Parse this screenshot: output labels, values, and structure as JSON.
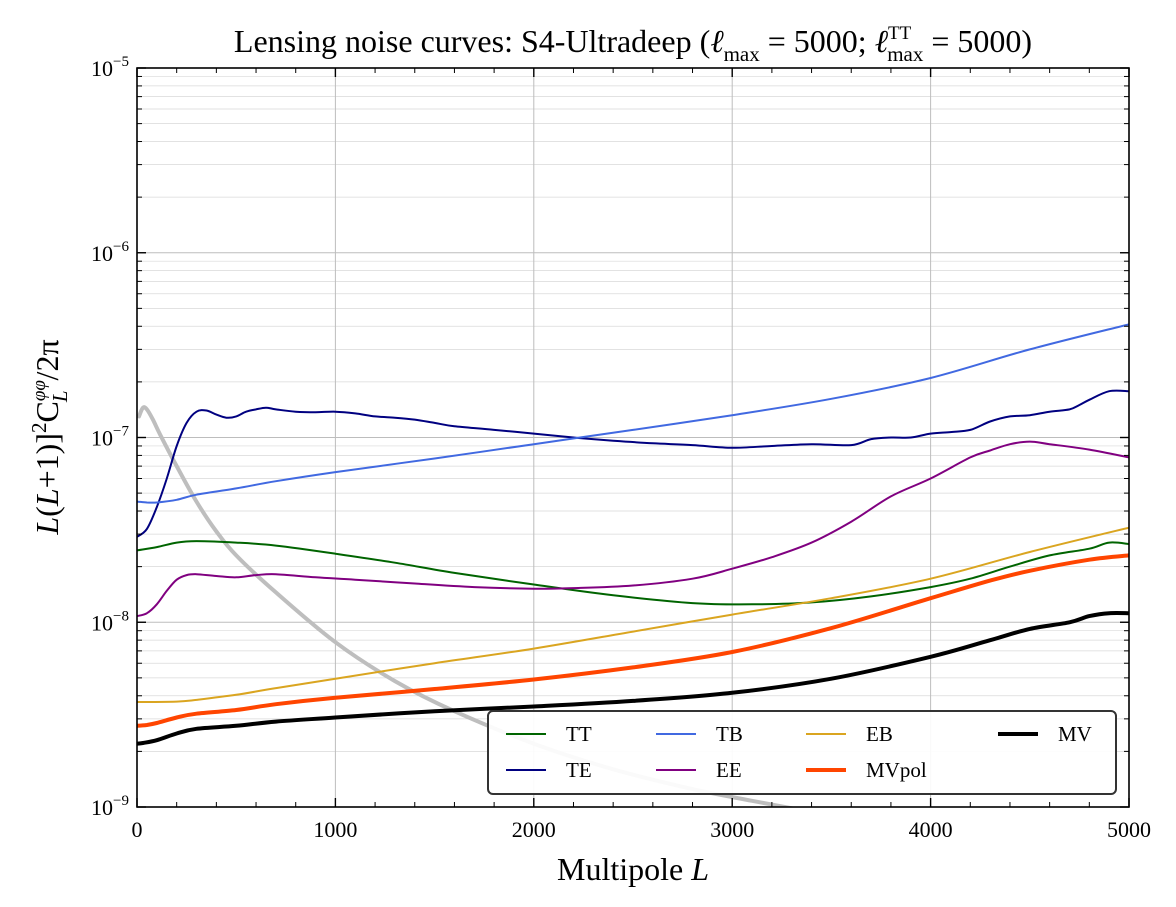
{
  "chart_data": {
    "type": "line",
    "title": "Lensing noise curves: S4-Ultradeep (ℓmax = 5000; ℓTTmax = 5000)",
    "title_parts": {
      "prefix": "Lensing noise curves: S4-Ultradeep (",
      "ell": "ℓ",
      "max": "max",
      "eq1": " = 5000; ",
      "tt": "TT",
      "eq2": " = 5000)"
    },
    "xlabel": "Multipole L",
    "xlabel_parts": {
      "text": "Multipole ",
      "var": "L"
    },
    "ylabel": "L(L+1)]²C_L^φφ/2π",
    "ylabel_parts": {
      "a": "L",
      "b": "(",
      "c": "L",
      "d": "+1)]",
      "e": "2",
      "f": "C",
      "g": "φφ",
      "h": "L",
      "i": "/2π"
    },
    "xlim": [
      0,
      5000
    ],
    "ylim": [
      1e-09,
      1e-05
    ],
    "yscale": "log",
    "grid": true,
    "legend_position": "lower-right",
    "x_ticks": [
      {
        "value": 0,
        "label": "0"
      },
      {
        "value": 1000,
        "label": "1000"
      },
      {
        "value": 2000,
        "label": "2000"
      },
      {
        "value": 3000,
        "label": "3000"
      },
      {
        "value": 4000,
        "label": "4000"
      },
      {
        "value": 5000,
        "label": "5000"
      }
    ],
    "y_ticks": [
      {
        "value": 1e-09,
        "base": "10",
        "exp": "−9"
      },
      {
        "value": 1e-08,
        "base": "10",
        "exp": "−8"
      },
      {
        "value": 1e-07,
        "base": "10",
        "exp": "−7"
      },
      {
        "value": 1e-06,
        "base": "10",
        "exp": "−6"
      },
      {
        "value": 1e-05,
        "base": "10",
        "exp": "−5"
      }
    ],
    "series": [
      {
        "name": "TT",
        "color": "#006400",
        "width": 2,
        "x": [
          0,
          100,
          200,
          300,
          500,
          700,
          1000,
          1300,
          1600,
          2000,
          2400,
          2800,
          3100,
          3400,
          3700,
          4000,
          4200,
          4400,
          4600,
          4800,
          4900,
          5000
        ],
        "y": [
          2.45e-08,
          2.55e-08,
          2.7e-08,
          2.75e-08,
          2.7e-08,
          2.6e-08,
          2.35e-08,
          2.1e-08,
          1.85e-08,
          1.6e-08,
          1.4e-08,
          1.27e-08,
          1.25e-08,
          1.28e-08,
          1.38e-08,
          1.55e-08,
          1.72e-08,
          2e-08,
          2.3e-08,
          2.5e-08,
          2.7e-08,
          2.65e-08
        ]
      },
      {
        "name": "TE",
        "color": "#000080",
        "width": 2,
        "x": [
          0,
          50,
          100,
          150,
          200,
          250,
          300,
          350,
          400,
          450,
          500,
          550,
          600,
          650,
          700,
          800,
          900,
          1000,
          1100,
          1200,
          1300,
          1400,
          1500,
          1600,
          1800,
          2000,
          2200,
          2400,
          2600,
          2800,
          3000,
          3200,
          3400,
          3600,
          3700,
          3800,
          3900,
          4000,
          4100,
          4200,
          4300,
          4400,
          4500,
          4600,
          4700,
          4750,
          4800,
          4900,
          5000
        ],
        "y": [
          2.9e-08,
          3.2e-08,
          4.2e-08,
          6e-08,
          9e-08,
          1.2e-07,
          1.38e-07,
          1.4e-07,
          1.33e-07,
          1.28e-07,
          1.3e-07,
          1.38e-07,
          1.42e-07,
          1.45e-07,
          1.42e-07,
          1.38e-07,
          1.37e-07,
          1.38e-07,
          1.35e-07,
          1.3e-07,
          1.28e-07,
          1.25e-07,
          1.2e-07,
          1.15e-07,
          1.1e-07,
          1.05e-07,
          1e-07,
          9.6e-08,
          9.3e-08,
          9.1e-08,
          8.8e-08,
          9e-08,
          9.2e-08,
          9.1e-08,
          9.8e-08,
          1e-07,
          1e-07,
          1.05e-07,
          1.07e-07,
          1.1e-07,
          1.22e-07,
          1.3e-07,
          1.32e-07,
          1.38e-07,
          1.42e-07,
          1.5e-07,
          1.6e-07,
          1.78e-07,
          1.78e-07
        ]
      },
      {
        "name": "TB",
        "color": "#4169E1",
        "width": 2,
        "x": [
          0,
          50,
          100,
          200,
          300,
          500,
          700,
          1000,
          1500,
          2000,
          2500,
          3000,
          3500,
          4000,
          4500,
          5000
        ],
        "y": [
          4.5e-08,
          4.45e-08,
          4.45e-08,
          4.6e-08,
          4.9e-08,
          5.3e-08,
          5.8e-08,
          6.5e-08,
          7.7e-08,
          9.2e-08,
          1.1e-07,
          1.32e-07,
          1.62e-07,
          2.1e-07,
          3e-07,
          4.1e-07
        ]
      },
      {
        "name": "EE",
        "color": "#800080",
        "width": 2,
        "x": [
          0,
          50,
          100,
          150,
          200,
          250,
          300,
          400,
          500,
          600,
          700,
          900,
          1100,
          1400,
          1700,
          2000,
          2200,
          2500,
          2800,
          3000,
          3200,
          3400,
          3600,
          3800,
          4000,
          4200,
          4300,
          4400,
          4500,
          4600,
          4800,
          5000
        ],
        "y": [
          1.08e-08,
          1.12e-08,
          1.25e-08,
          1.48e-08,
          1.7e-08,
          1.8e-08,
          1.82e-08,
          1.78e-08,
          1.75e-08,
          1.8e-08,
          1.82e-08,
          1.75e-08,
          1.7e-08,
          1.62e-08,
          1.55e-08,
          1.52e-08,
          1.53e-08,
          1.58e-08,
          1.72e-08,
          1.95e-08,
          2.25e-08,
          2.7e-08,
          3.5e-08,
          4.8e-08,
          6e-08,
          7.8e-08,
          8.5e-08,
          9.2e-08,
          9.5e-08,
          9.2e-08,
          8.6e-08,
          7.8e-08
        ]
      },
      {
        "name": "EB",
        "color": "#DAA520",
        "width": 2,
        "x": [
          0,
          200,
          300,
          500,
          700,
          1000,
          1500,
          2000,
          2500,
          3000,
          3500,
          4000,
          4500,
          5000
        ],
        "y": [
          3.7e-09,
          3.72e-09,
          3.8e-09,
          4.05e-09,
          4.4e-09,
          4.95e-09,
          6e-09,
          7.2e-09,
          8.9e-09,
          1.1e-08,
          1.35e-08,
          1.72e-08,
          2.4e-08,
          3.25e-08
        ]
      },
      {
        "name": "MVpol",
        "color": "#FF4500",
        "width": 4,
        "x": [
          0,
          50,
          100,
          200,
          300,
          500,
          700,
          1000,
          1500,
          2000,
          2500,
          3000,
          3500,
          4000,
          4300,
          4500,
          4800,
          5000
        ],
        "y": [
          2.75e-09,
          2.78e-09,
          2.85e-09,
          3.05e-09,
          3.2e-09,
          3.35e-09,
          3.6e-09,
          3.9e-09,
          4.35e-09,
          4.9e-09,
          5.7e-09,
          6.9e-09,
          9.3e-09,
          1.35e-08,
          1.68e-08,
          1.9e-08,
          2.18e-08,
          2.3e-08
        ]
      },
      {
        "name": "MV",
        "color": "#000000",
        "width": 4,
        "x": [
          0,
          30,
          100,
          200,
          300,
          500,
          700,
          1000,
          1500,
          2000,
          2500,
          3000,
          3500,
          4000,
          4300,
          4500,
          4700,
          4800,
          4900,
          5000
        ],
        "y": [
          2.2e-09,
          2.22e-09,
          2.3e-09,
          2.5e-09,
          2.65e-09,
          2.75e-09,
          2.9e-09,
          3.05e-09,
          3.3e-09,
          3.5e-09,
          3.75e-09,
          4.15e-09,
          4.95e-09,
          6.5e-09,
          8e-09,
          9.2e-09,
          1e-08,
          1.08e-08,
          1.12e-08,
          1.12e-08
        ]
      },
      {
        "name": "",
        "color": "#BEBEBE",
        "width": 4,
        "x": [
          10,
          30,
          50,
          80,
          120,
          200,
          300,
          400,
          500,
          700,
          1000,
          1300,
          1600,
          2000,
          2400,
          2800,
          3100,
          3400
        ],
        "y": [
          1.3e-07,
          1.45e-07,
          1.42e-07,
          1.25e-07,
          1.02e-07,
          7e-08,
          4.5e-08,
          3.1e-08,
          2.3e-08,
          1.45e-08,
          7.8e-09,
          4.8e-09,
          3.3e-09,
          2.2e-09,
          1.6e-09,
          1.25e-09,
          1.08e-09,
          9.4e-10
        ]
      }
    ]
  }
}
